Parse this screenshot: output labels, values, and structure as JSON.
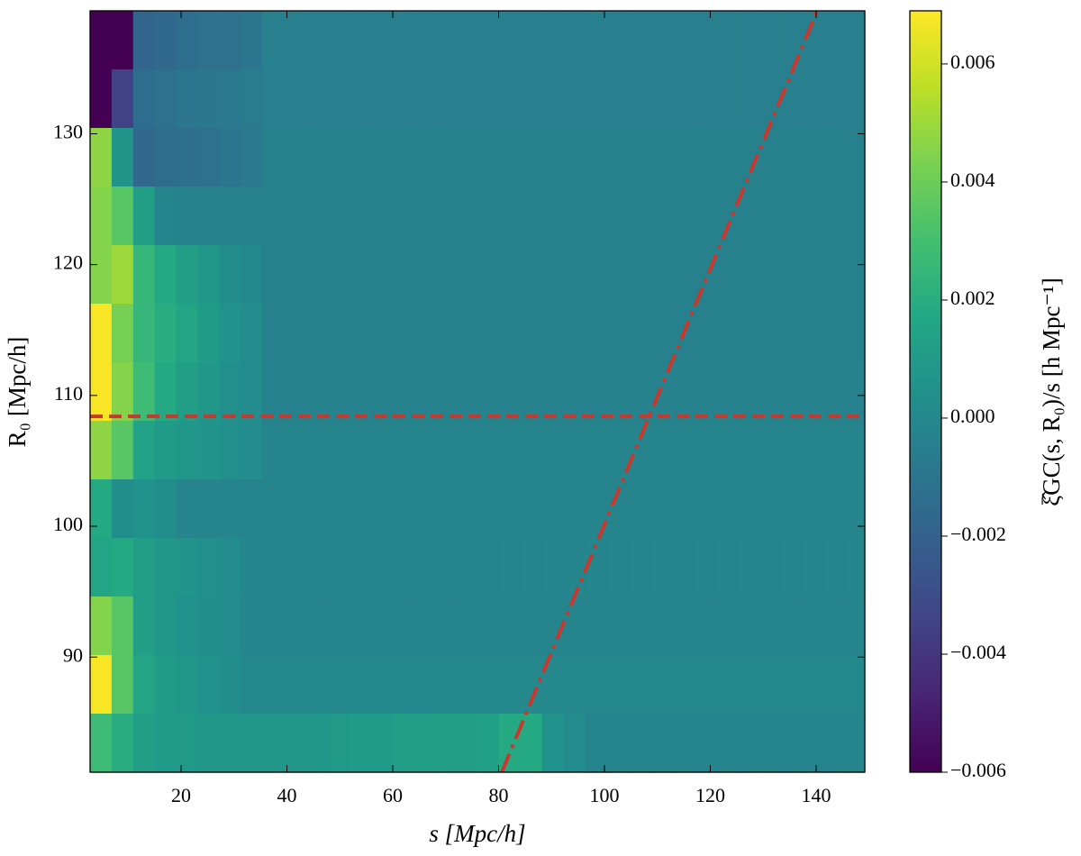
{
  "chart_data": {
    "type": "heatmap",
    "colormap": "viridis",
    "xlabel": "s [Mpc/h]",
    "ylabel": "R₀ [Mpc/h]",
    "colorbar_label": "ξ̂GC(s, R₀)/s [h Mpc⁻¹]",
    "xlim": [
      2.8,
      149.2
    ],
    "ylim": [
      81.2,
      139.4
    ],
    "xticks": [
      20,
      40,
      60,
      80,
      100,
      120,
      140
    ],
    "yticks": [
      90,
      100,
      110,
      120,
      130
    ],
    "clim": [
      -0.006,
      0.0069
    ],
    "cticks": [
      {
        "value": -0.006,
        "label": "−0.006"
      },
      {
        "value": -0.004,
        "label": "−0.004"
      },
      {
        "value": -0.002,
        "label": "−0.002"
      },
      {
        "value": 0,
        "label": "0.000"
      },
      0.002,
      0.004,
      0.006
    ],
    "values": [
      [
        -0.006,
        -0.006,
        -0.0018,
        -0.0016,
        -0.0014,
        -0.0012,
        -0.0012,
        -0.001,
        -0.0005,
        -0.0005,
        -0.0005,
        -0.0005,
        -0.0005,
        -0.0005,
        -0.0005,
        -0.0005,
        -0.0005,
        -0.0005,
        -0.0005,
        -0.0005,
        -0.0005,
        -0.0005,
        -0.0005,
        -0.0005,
        -0.0005,
        -0.0005,
        -0.0005,
        -0.0005,
        -0.0005,
        -0.0005,
        -0.0005,
        -0.0005,
        -0.0005,
        -0.0005,
        -0.0005,
        -0.0005
      ],
      [
        -0.006,
        -0.0035,
        -0.0014,
        -0.0012,
        -0.001,
        -0.0009,
        -0.0008,
        -0.0007,
        -0.0005,
        -0.0005,
        -0.0005,
        -0.0005,
        -0.0005,
        -0.0005,
        -0.0005,
        -0.0005,
        -0.0005,
        -0.0005,
        -0.0005,
        -0.0005,
        -0.0005,
        -0.0005,
        -0.0005,
        -0.0005,
        -0.0005,
        -0.0005,
        -0.0005,
        -0.0005,
        -0.0005,
        -0.0005,
        -0.0005,
        -0.0005,
        -0.0005,
        -0.0005,
        -0.0005,
        -0.0005
      ],
      [
        0.0047,
        0.0007,
        -0.0016,
        -0.0014,
        -0.0013,
        -0.0012,
        -0.001,
        -0.0008,
        -0.0004,
        -0.0004,
        -0.0004,
        -0.0004,
        -0.0004,
        -0.0004,
        -0.0004,
        -0.0004,
        -0.0004,
        -0.0004,
        -0.0004,
        -0.0004,
        -0.0004,
        -0.0004,
        -0.0004,
        -0.0004,
        -0.0004,
        -0.0004,
        -0.0004,
        -0.0004,
        -0.0004,
        -0.0004,
        -0.0004,
        -0.0004,
        -0.0004,
        -0.0004,
        -0.0004,
        -0.0004
      ],
      [
        0.0045,
        0.0035,
        0.0012,
        -0.0002,
        -0.0003,
        -0.0004,
        -0.0004,
        -0.0004,
        -0.0004,
        -0.0004,
        -0.0004,
        -0.0004,
        -0.0004,
        -0.0004,
        -0.0004,
        -0.0004,
        -0.0004,
        -0.0004,
        -0.0004,
        -0.0004,
        -0.0004,
        -0.0004,
        -0.0004,
        -0.0004,
        -0.0004,
        -0.0004,
        -0.0004,
        -0.0004,
        -0.0004,
        -0.0004,
        -0.0004,
        -0.0004,
        -0.0004,
        -0.0004,
        -0.0004,
        -0.0004
      ],
      [
        0.0045,
        0.005,
        0.0025,
        0.0018,
        0.0012,
        0.0008,
        0.0003,
        0,
        -0.0004,
        -0.0004,
        -0.0004,
        -0.0004,
        -0.0004,
        -0.0004,
        -0.0004,
        -0.0004,
        -0.0004,
        -0.0004,
        -0.0004,
        -0.0004,
        -0.0004,
        -0.0004,
        -0.0004,
        -0.0004,
        -0.0004,
        -0.0004,
        -0.0004,
        -0.0004,
        -0.0004,
        -0.0004,
        -0.0004,
        -0.0004,
        -0.0004,
        -0.0004,
        -0.0004,
        -0.0004
      ],
      [
        0.0068,
        0.0042,
        0.0025,
        0.002,
        0.0015,
        0.001,
        0.0005,
        0.0002,
        -0.0004,
        -0.0004,
        -0.0004,
        -0.0004,
        -0.0004,
        -0.0004,
        -0.0004,
        -0.0004,
        -0.0004,
        -0.0004,
        -0.0004,
        -0.0004,
        -0.0004,
        -0.0004,
        -0.0004,
        -0.0004,
        -0.0004,
        -0.0004,
        -0.0004,
        -0.0004,
        -0.0004,
        -0.0004,
        -0.0004,
        -0.0004,
        -0.0004,
        -0.0004,
        -0.0004,
        -0.0004
      ],
      [
        0.0068,
        0.0045,
        0.0028,
        0.0018,
        0.0012,
        0.0008,
        0.0004,
        0.0002,
        -0.0003,
        -0.0003,
        -0.0003,
        -0.0003,
        -0.0003,
        -0.0003,
        -0.0003,
        -0.0003,
        -0.0003,
        -0.0003,
        -0.0003,
        -0.0003,
        -0.0003,
        -0.0003,
        -0.0003,
        -0.0003,
        -0.0003,
        -0.0003,
        -0.0003,
        -0.0003,
        -0.0003,
        -0.0003,
        -0.0003,
        -0.0003,
        -0.0003,
        -0.0003,
        -0.0003,
        -0.0003
      ],
      [
        0.0047,
        0.0035,
        0.0014,
        0.001,
        0.0008,
        0.0006,
        0.0004,
        0.0002,
        -0.0002,
        -0.0002,
        -0.0002,
        -0.0002,
        -0.0002,
        -0.0002,
        -0.0002,
        -0.0002,
        -0.0002,
        -0.0002,
        -0.0002,
        -0.0002,
        -0.0002,
        -0.0002,
        -0.0002,
        -0.0002,
        -0.0002,
        -0.0002,
        -0.0002,
        -0.0002,
        -0.0002,
        -0.0002,
        -0.0002,
        -0.0002,
        -0.0002,
        -0.0002,
        -0.0002,
        -0.0002
      ],
      [
        0.0018,
        0.0003,
        0.0005,
        0.0003,
        -0.0002,
        -0.0002,
        -0.0002,
        -0.0002,
        -0.0002,
        -0.0002,
        -0.0002,
        -0.0002,
        -0.0002,
        -0.0002,
        -0.0002,
        -0.0002,
        -0.0002,
        -0.0002,
        -0.0002,
        -0.0002,
        -0.0002,
        -0.0002,
        -0.0002,
        -0.0002,
        -0.0002,
        -0.0002,
        -0.0002,
        -0.0002,
        -0.0002,
        -0.0002,
        -0.0002,
        -0.0002,
        -0.0002,
        -0.0002,
        -0.0002,
        -0.0002
      ],
      [
        0.0015,
        0.0018,
        0.0012,
        0.0008,
        0.0006,
        0.0004,
        0.0002,
        -0.0001,
        -0.0001,
        -0.0001,
        -0.0001,
        -0.0001,
        -0.0001,
        -0.0001,
        -0.0001,
        -0.0001,
        -0.0001,
        -0.0001,
        -0.0001,
        -0.0001,
        -0.0001,
        -0.0001,
        -0.0001,
        -0.0001,
        -0.0001,
        -0.0001,
        -0.0001,
        -0.0001,
        -0.0001,
        -0.0001,
        -0.0001,
        -0.0001,
        -0.0001,
        -0.0001,
        -0.0001,
        -0.0001
      ],
      [
        0.0045,
        0.0035,
        0.0012,
        0.0008,
        0.0005,
        0.0003,
        0.0002,
        -0.0002,
        -0.0002,
        -0.0002,
        -0.0002,
        -0.0002,
        -0.0002,
        -0.0002,
        -0.0002,
        -0.0002,
        -0.0002,
        -0.0002,
        -0.0002,
        -0.0002,
        -0.0002,
        -0.0002,
        -0.0002,
        -0.0002,
        -0.0002,
        -0.0002,
        -0.0002,
        -0.0002,
        -0.0002,
        -0.0002,
        -0.0002,
        -0.0002,
        -0.0002,
        -0.0002,
        -0.0002,
        -0.0002
      ],
      [
        0.0068,
        0.0035,
        0.0015,
        0.001,
        0.0008,
        0.0005,
        0.0003,
        0,
        0,
        0,
        0,
        0,
        0,
        0,
        0,
        0,
        0,
        0,
        0,
        0,
        0,
        0,
        0,
        0,
        0,
        0,
        0,
        0,
        0,
        0,
        0,
        0,
        0,
        0,
        0,
        0
      ],
      [
        0.0028,
        0.002,
        0.0012,
        0.001,
        0.0009,
        0.0008,
        0.0008,
        0.0008,
        0.0008,
        0.0008,
        0.0008,
        0.0009,
        0.001,
        0.001,
        0.0011,
        0.0011,
        0.0012,
        0.0012,
        0.0013,
        0.0018,
        0.0018,
        0.0005,
        0.0002,
        -0.0002,
        -0.0002,
        -0.0002,
        -0.0002,
        -0.0002,
        -0.0002,
        -0.0002,
        -0.0002,
        -0.0002,
        -0.0002,
        -0.0002,
        -0.0002,
        -0.0002
      ]
    ],
    "lines": [
      {
        "style": "dashed",
        "color": "#c8382c",
        "x": [
          2.8,
          149.2
        ],
        "y": [
          108.4,
          108.4
        ]
      },
      {
        "style": "dashdot",
        "color": "#c8382c",
        "x": [
          80.6,
          140.2
        ],
        "y": [
          81.2,
          139.4
        ]
      }
    ]
  }
}
